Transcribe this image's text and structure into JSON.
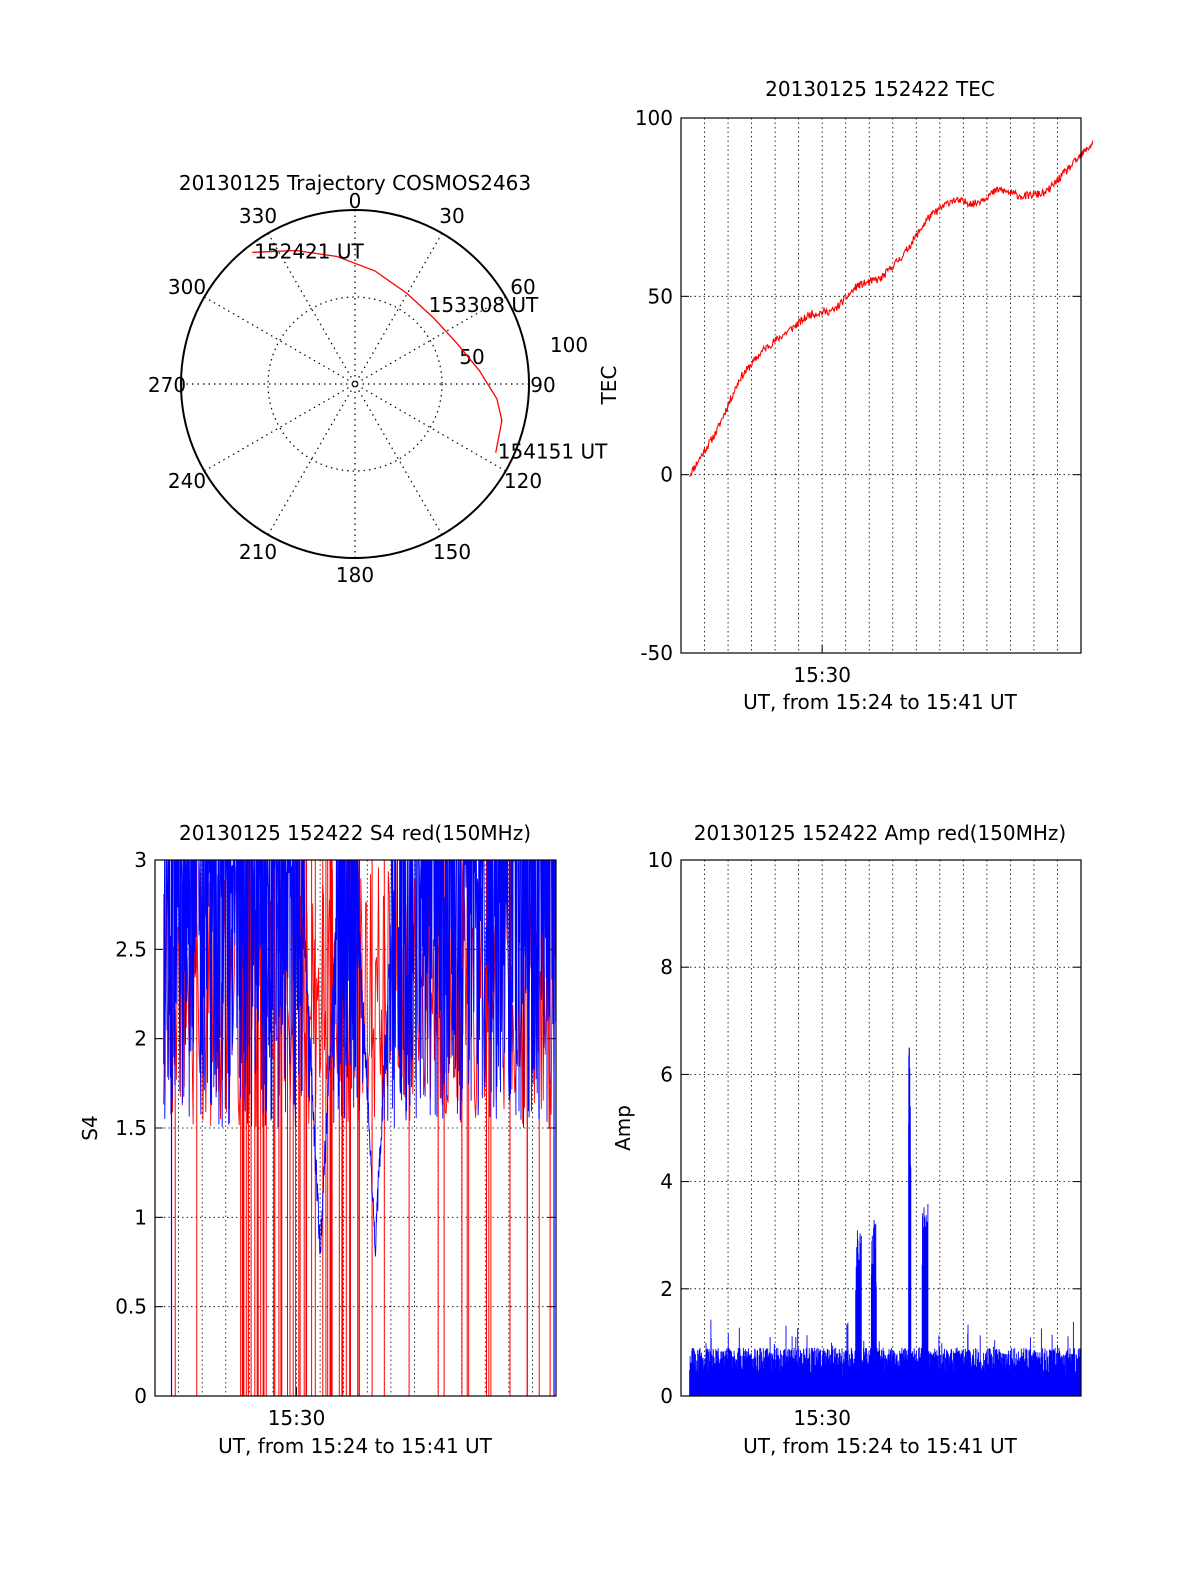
{
  "chart_data": [
    {
      "type": "polar",
      "title": "20130125 Trajectory COSMOS2463",
      "azimuth_labels": [
        "0",
        "30",
        "60",
        "90",
        "120",
        "150",
        "180",
        "210",
        "240",
        "270",
        "300",
        "330"
      ],
      "radius_labels": [
        "50",
        "100"
      ],
      "rlim": [
        0,
        100
      ],
      "grid": true,
      "series": [
        {
          "color": "#ff0000",
          "points": [
            {
              "az": 322,
              "r": 96
            },
            {
              "az": 336,
              "r": 84
            },
            {
              "az": 352,
              "r": 74
            },
            {
              "az": 10,
              "r": 66
            },
            {
              "az": 30,
              "r": 60
            },
            {
              "az": 50,
              "r": 59
            },
            {
              "az": 68,
              "r": 63
            },
            {
              "az": 84,
              "r": 72
            },
            {
              "az": 96,
              "r": 82
            },
            {
              "az": 104,
              "r": 87
            },
            {
              "az": 116,
              "r": 90
            }
          ]
        }
      ],
      "annotations": [
        {
          "text": "152421 UT",
          "az": 322,
          "r": 96
        },
        {
          "text": "153308 UT",
          "az": 50,
          "r": 59
        },
        {
          "text": "154151 UT",
          "az": 116,
          "r": 90
        }
      ]
    },
    {
      "type": "line",
      "title": "20130125 152422 TEC",
      "xlabel": "UT, from 15:24 to 15:41 UT",
      "ylabel": "TEC",
      "x_ticklabels": [
        "15:30"
      ],
      "xlim": [
        "15:24",
        "15:41"
      ],
      "ylim": [
        -50,
        100
      ],
      "y_ticks": [
        "-50",
        "0",
        "50",
        "100"
      ],
      "grid": true,
      "series": [
        {
          "color": "#ff0000",
          "x": [
            "15:24:22",
            "15:25:30",
            "15:26:30",
            "15:27:30",
            "15:28:30",
            "15:29:30",
            "15:30:30",
            "15:31:30",
            "15:32:30",
            "15:33:30",
            "15:34:30",
            "15:35:30",
            "15:36:30",
            "15:37:30",
            "15:38:30",
            "15:39:30",
            "15:40:30",
            "15:41:30"
          ],
          "values": [
            0,
            12,
            27,
            35,
            40,
            45,
            46,
            53,
            55,
            62,
            72,
            77,
            76,
            80,
            78,
            79,
            86,
            93
          ]
        }
      ]
    },
    {
      "type": "bar",
      "title": "20130125 152422 S4 red(150MHz)",
      "xlabel": "UT, from 15:24 to 15:41 UT",
      "ylabel": "S4",
      "x_ticklabels": [
        "15:30"
      ],
      "xlim": [
        "15:24",
        "15:41"
      ],
      "ylim": [
        0,
        3
      ],
      "y_ticks": [
        "0",
        "0.5",
        "1",
        "1.5",
        "2",
        "2.5",
        "3"
      ],
      "grid": true,
      "series": [
        {
          "color": "#0000ff",
          "note_values": "dense noisy trace mostly between 1.5 and 3, dropping to ~0.7 near 15:31 and 15:33"
        },
        {
          "color": "#ff0000",
          "note_values": "sparse vertical spikes from 0 to 3, densest 15:27-15:32"
        }
      ]
    },
    {
      "type": "bar",
      "title": "20130125 152422 Amp red(150MHz)",
      "xlabel": "UT, from 15:24 to 15:41 UT",
      "ylabel": "Amp",
      "x_ticklabels": [
        "15:30"
      ],
      "xlim": [
        "15:24",
        "15:41"
      ],
      "ylim": [
        0,
        10
      ],
      "y_ticks": [
        "0",
        "2",
        "4",
        "6",
        "8",
        "10"
      ],
      "grid": true,
      "series": [
        {
          "color": "#0000ff",
          "note_values": "noise floor ~0.3-1.5 with bursts ~3.2 near 15:31:30-15:32:30, spike 6.5 near 15:33:45, burst ~3.6 near 15:34:30"
        }
      ]
    }
  ]
}
